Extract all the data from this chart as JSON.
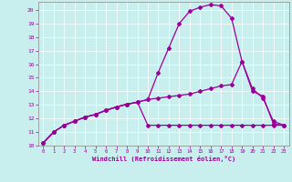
{
  "title": "",
  "xlabel": "Windchill (Refroidissement éolien,°C)",
  "ylabel": "",
  "xlim": [
    -0.5,
    23.5
  ],
  "ylim": [
    10.0,
    20.6
  ],
  "yticks": [
    10,
    11,
    12,
    13,
    14,
    15,
    16,
    17,
    18,
    19,
    20
  ],
  "xticks": [
    0,
    1,
    2,
    3,
    4,
    5,
    6,
    7,
    8,
    9,
    10,
    11,
    12,
    13,
    14,
    15,
    16,
    17,
    18,
    19,
    20,
    21,
    22,
    23
  ],
  "bg_color": "#c8eeee",
  "grid_color": "#b0d8d8",
  "line_color": "#990099",
  "line1_x": [
    0,
    1,
    2,
    3,
    4,
    5,
    6,
    7,
    8,
    9,
    10,
    11,
    12,
    13,
    14,
    15,
    16,
    17,
    18,
    19,
    20,
    21,
    22,
    23
  ],
  "line1_y": [
    10.2,
    11.0,
    11.5,
    11.8,
    12.1,
    12.3,
    12.6,
    12.85,
    13.05,
    13.2,
    13.4,
    15.4,
    17.2,
    19.0,
    19.9,
    20.2,
    20.4,
    20.3,
    19.4,
    16.2,
    14.0,
    13.65,
    11.6,
    11.5
  ],
  "line2_x": [
    0,
    1,
    2,
    3,
    4,
    5,
    6,
    7,
    8,
    9,
    10,
    11,
    12,
    13,
    14,
    15,
    16,
    17,
    18,
    19,
    20,
    21,
    22,
    23
  ],
  "line2_y": [
    10.2,
    11.0,
    11.5,
    11.8,
    12.1,
    12.3,
    12.6,
    12.85,
    13.05,
    13.2,
    13.4,
    13.5,
    13.6,
    13.7,
    13.8,
    14.0,
    14.2,
    14.4,
    14.5,
    16.2,
    14.2,
    13.5,
    11.8,
    11.5
  ],
  "line3_x": [
    0,
    1,
    2,
    3,
    4,
    5,
    6,
    7,
    8,
    9,
    10,
    11,
    12,
    13,
    14,
    15,
    16,
    17,
    18,
    19,
    20,
    21,
    22,
    23
  ],
  "line3_y": [
    10.2,
    11.0,
    11.5,
    11.8,
    12.1,
    12.3,
    12.6,
    12.85,
    13.05,
    13.2,
    11.5,
    11.5,
    11.5,
    11.5,
    11.5,
    11.5,
    11.5,
    11.5,
    11.5,
    11.5,
    11.5,
    11.5,
    11.5,
    11.5
  ]
}
